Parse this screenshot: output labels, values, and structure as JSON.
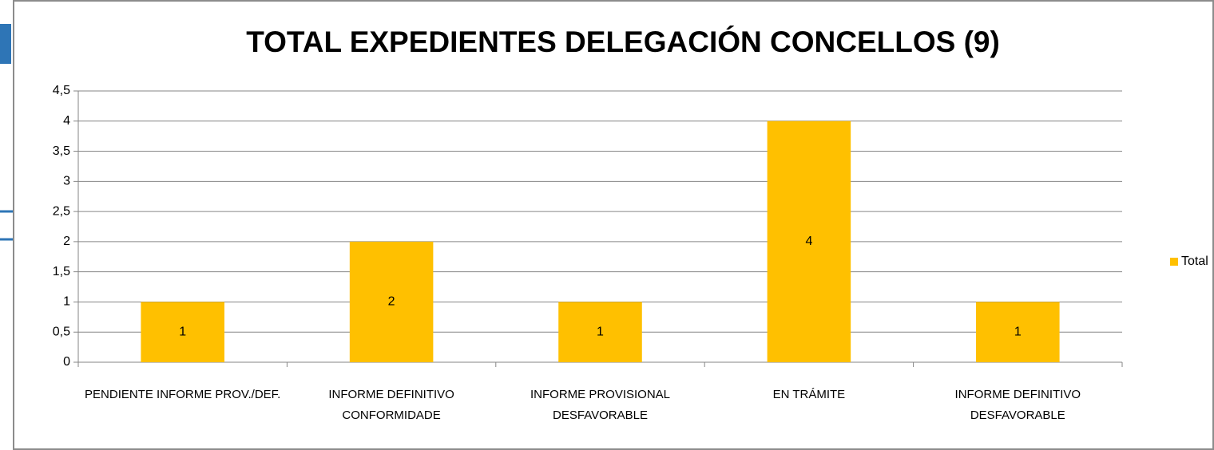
{
  "chart_data": {
    "type": "bar",
    "title": "TOTAL EXPEDIENTES DELEGACIÓN CONCELLOS (9)",
    "categories": [
      "PENDIENTE INFORME PROV./DEF.",
      "INFORME DEFINITIVO CONFORMIDADE",
      "INFORME PROVISIONAL DESFAVORABLE",
      "EN TRÁMITE",
      "INFORME DEFINITIVO DESFAVORABLE"
    ],
    "series": [
      {
        "name": "Total",
        "color": "#ffc000",
        "values": [
          1,
          2,
          1,
          4,
          1
        ]
      }
    ],
    "ylim": [
      0,
      4.5
    ],
    "yticks": [
      0,
      {
        "value": 0.5,
        "label": "0,5"
      },
      1,
      {
        "value": 1.5,
        "label": "1,5"
      },
      2,
      {
        "value": 2.5,
        "label": "2,5"
      },
      3,
      {
        "value": 3.5,
        "label": "3,5"
      },
      4,
      {
        "value": 4.5,
        "label": "4,5"
      }
    ],
    "grid": true,
    "legend": "right"
  }
}
